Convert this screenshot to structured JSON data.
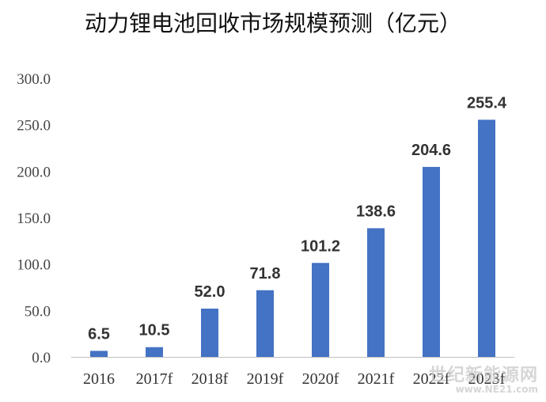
{
  "chart_data": {
    "type": "bar",
    "title": "动力锂电池回收市场规模预测（亿元）",
    "categories": [
      "2016",
      "2017f",
      "2018f",
      "2019f",
      "2020f",
      "2021f",
      "2022f",
      "2023f"
    ],
    "values": [
      6.5,
      10.5,
      52.0,
      71.8,
      101.2,
      138.6,
      204.6,
      255.4
    ],
    "value_labels": [
      "6.5",
      "10.5",
      "52.0",
      "71.8",
      "101.2",
      "138.6",
      "204.6",
      "255.4"
    ],
    "y_ticks": [
      "0.0",
      "50.0",
      "100.0",
      "150.0",
      "200.0",
      "250.0",
      "300.0"
    ],
    "ylim": [
      0,
      300
    ],
    "xlabel": "",
    "ylabel": "",
    "grid": false,
    "bar_color": "#4472C4"
  },
  "watermark": {
    "line1": "世纪新能源网",
    "line2": "www.NE21.com"
  }
}
